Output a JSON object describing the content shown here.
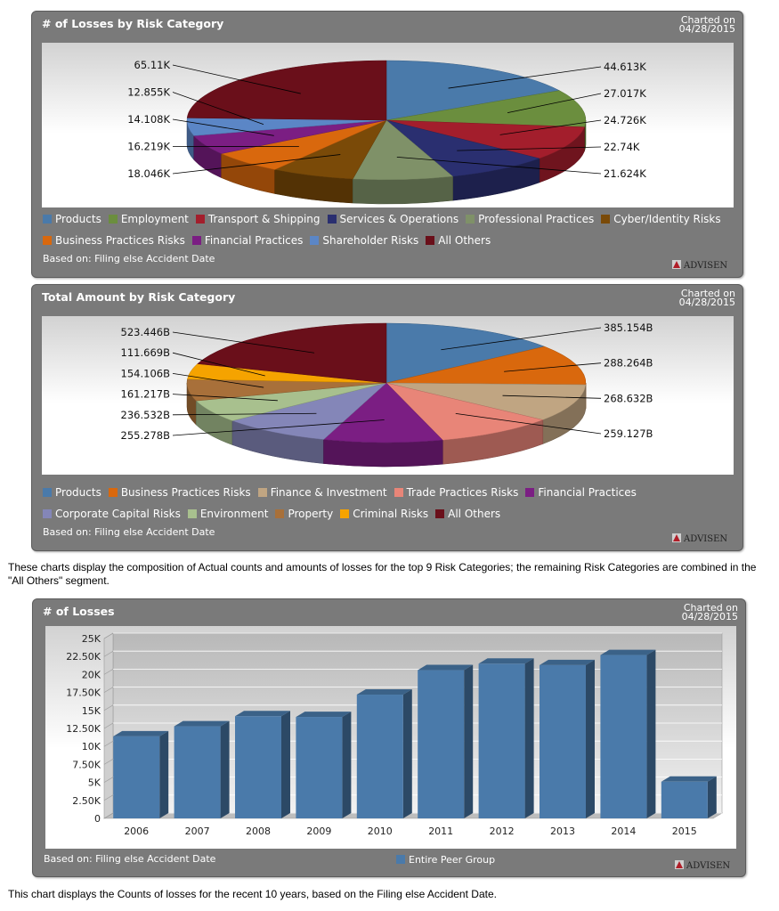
{
  "logo_text": "ADVISEN",
  "footnote_label": "Based on: Filing else Accident Date",
  "charted": {
    "line1": "Charted on",
    "line2": "04/28/2015"
  },
  "colors": {
    "panel": "#7a7a7a",
    "text": "#ffffff"
  },
  "pie1": {
    "title": "# of Losses by Risk Category"
  },
  "pie2": {
    "title": "Total Amount by Risk Category"
  },
  "pie_note": "These charts display the composition of Actual counts and amounts of losses for the top 9 Risk Categories; the remaining Risk Categories are combined in the \"All Others\" segment.",
  "bar": {
    "title": "# of Losses"
  },
  "bar_note": "This chart displays the Counts of losses for the recent 10 years, based on the Filing else Accident Date.",
  "chart_data": [
    {
      "type": "pie",
      "title": "# of Losses by Risk Category",
      "slices": [
        {
          "label": "Products",
          "value": 44613,
          "display": "44.613K",
          "color": "#4a7aaa"
        },
        {
          "label": "Employment",
          "value": 27017,
          "display": "27.017K",
          "color": "#6b8e3e"
        },
        {
          "label": "Transport & Shipping",
          "value": 24726,
          "display": "24.726K",
          "color": "#a31e2c"
        },
        {
          "label": "Services & Operations",
          "value": 22740,
          "display": "22.74K",
          "color": "#2a2f70"
        },
        {
          "label": "Professional Practices",
          "value": 21624,
          "display": "21.624K",
          "color": "#7f9168"
        },
        {
          "label": "Cyber/Identity Risks",
          "value": 18046,
          "display": "18.046K",
          "color": "#7a4a08"
        },
        {
          "label": "Business Practices Risks",
          "value": 16219,
          "display": "16.219K",
          "color": "#d9680d"
        },
        {
          "label": "Financial Practices",
          "value": 14108,
          "display": "14.108K",
          "color": "#7b1e83"
        },
        {
          "label": "Shareholder Risks",
          "value": 12855,
          "display": "12.855K",
          "color": "#5b86c6"
        },
        {
          "label": "All Others",
          "value": 65110,
          "display": "65.11K",
          "color": "#6a0f1a"
        }
      ]
    },
    {
      "type": "pie",
      "title": "Total Amount by Risk Category",
      "slices": [
        {
          "label": "Products",
          "value": 385154,
          "display": "385.154B",
          "color": "#4a7aaa"
        },
        {
          "label": "Business Practices Risks",
          "value": 288264,
          "display": "288.264B",
          "color": "#d9680d"
        },
        {
          "label": "Finance & Investment",
          "value": 268632,
          "display": "268.632B",
          "color": "#c0a582"
        },
        {
          "label": "Trade Practices Risks",
          "value": 259127,
          "display": "259.127B",
          "color": "#e88578"
        },
        {
          "label": "Financial Practices",
          "value": 255278,
          "display": "255.278B",
          "color": "#7b1e83"
        },
        {
          "label": "Corporate Capital Risks",
          "value": 236532,
          "display": "236.532B",
          "color": "#8486b8"
        },
        {
          "label": "Environment",
          "value": 161217,
          "display": "161.217B",
          "color": "#a8c08e"
        },
        {
          "label": "Property",
          "value": 154106,
          "display": "154.106B",
          "color": "#a8703a"
        },
        {
          "label": "Criminal Risks",
          "value": 111669,
          "display": "111.669B",
          "color": "#f5a300"
        },
        {
          "label": "All Others",
          "value": 523446,
          "display": "523.446B",
          "color": "#6a0f1a"
        }
      ]
    },
    {
      "type": "bar",
      "title": "# of Losses",
      "categories": [
        "2006",
        "2007",
        "2008",
        "2009",
        "2010",
        "2011",
        "2012",
        "2013",
        "2014",
        "2015"
      ],
      "series": [
        {
          "name": "Entire Peer Group",
          "color": "#4a7aaa",
          "values": [
            11400,
            12800,
            14200,
            14100,
            17200,
            20600,
            21500,
            21300,
            22700,
            5100
          ]
        }
      ],
      "ylim": [
        0,
        25000
      ],
      "yticks": [
        "0",
        "2.50K",
        "5K",
        "7.50K",
        "10K",
        "12.50K",
        "15K",
        "17.50K",
        "20K",
        "22.50K",
        "25K"
      ],
      "grid": true,
      "legend": "bottom"
    }
  ]
}
